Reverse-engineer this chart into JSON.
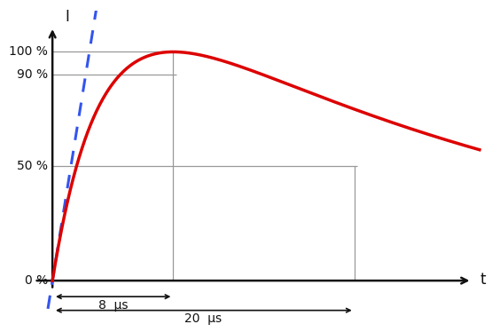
{
  "ylabel": "I",
  "xlabel": "t",
  "hline_values": [
    50,
    90,
    100
  ],
  "vline_8us": 8,
  "vline_20us": 20,
  "annotation_8us": "8  μs",
  "annotation_20us": "20  μs",
  "curve_color": "#dd0000",
  "dashed_color": "#3355ee",
  "grid_color": "#999999",
  "axis_color": "#111111",
  "text_color": "#111111",
  "xlim": [
    -1.5,
    28.5
  ],
  "ylim": [
    -16,
    118
  ],
  "alpha_decay": 0.068,
  "alpha_rise": 0.65,
  "t_max": 28.5,
  "hline_xstart": 0,
  "hline_xend_100": 8.2,
  "hline_xend_90": 8.2,
  "hline_xend_50": 20.2,
  "dash_x_start": -0.8,
  "dash_x_end": 8.9,
  "ann1_y": -7,
  "ann2_y": -13
}
